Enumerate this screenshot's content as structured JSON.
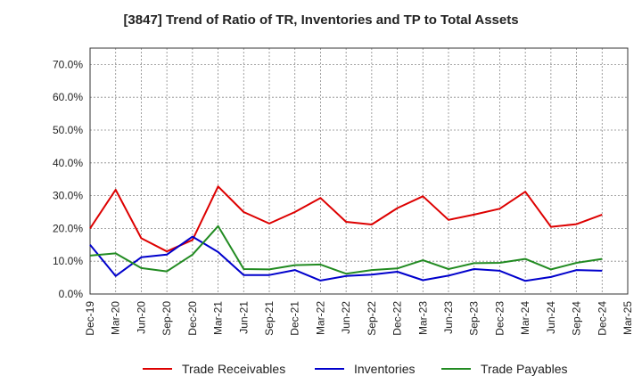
{
  "chart_data": {
    "type": "line",
    "title": "[3847]  Trend of Ratio of TR, Inventories and TP to Total Assets",
    "xlabel": "",
    "ylabel": "",
    "x": [
      "Dec-19",
      "Mar-20",
      "Jun-20",
      "Sep-20",
      "Dec-20",
      "Mar-21",
      "Jun-21",
      "Sep-21",
      "Dec-21",
      "Mar-22",
      "Jun-22",
      "Sep-22",
      "Dec-22",
      "Mar-23",
      "Jun-23",
      "Sep-23",
      "Dec-23",
      "Mar-24",
      "Jun-24",
      "Sep-24",
      "Dec-24"
    ],
    "x_ticks": [
      "Dec-19",
      "Mar-20",
      "Jun-20",
      "Sep-20",
      "Dec-20",
      "Mar-21",
      "Jun-21",
      "Sep-21",
      "Dec-21",
      "Mar-22",
      "Jun-22",
      "Sep-22",
      "Dec-22",
      "Mar-23",
      "Jun-23",
      "Sep-23",
      "Dec-23",
      "Mar-24",
      "Jun-24",
      "Sep-24",
      "Dec-24",
      "Mar-25"
    ],
    "y_ticks": [
      "0.0%",
      "10.0%",
      "20.0%",
      "30.0%",
      "40.0%",
      "50.0%",
      "60.0%",
      "70.0%"
    ],
    "ylim": [
      0,
      75
    ],
    "grid": true,
    "legend_position": "bottom",
    "series": [
      {
        "name": "Trade Receivables",
        "color": "#dd0000",
        "values": [
          20.0,
          31.8,
          17.0,
          13.0,
          16.5,
          32.8,
          25.0,
          21.5,
          25.0,
          29.3,
          22.0,
          21.2,
          26.2,
          29.8,
          22.6,
          24.2,
          26.0,
          31.2,
          20.5,
          21.3,
          24.2
        ]
      },
      {
        "name": "Inventories",
        "color": "#0000cc",
        "values": [
          15.0,
          5.5,
          11.2,
          12.0,
          17.5,
          12.8,
          5.8,
          5.8,
          7.3,
          4.1,
          5.5,
          5.9,
          6.8,
          4.2,
          5.6,
          7.6,
          7.1,
          4.0,
          5.2,
          7.3,
          7.1
        ]
      },
      {
        "name": "Trade Payables",
        "color": "#228b22",
        "values": [
          11.7,
          12.4,
          7.9,
          6.9,
          12.0,
          20.7,
          7.6,
          7.5,
          8.8,
          9.0,
          6.2,
          7.3,
          7.8,
          10.3,
          7.6,
          9.4,
          9.5,
          10.7,
          7.5,
          9.5,
          10.7
        ]
      }
    ]
  }
}
